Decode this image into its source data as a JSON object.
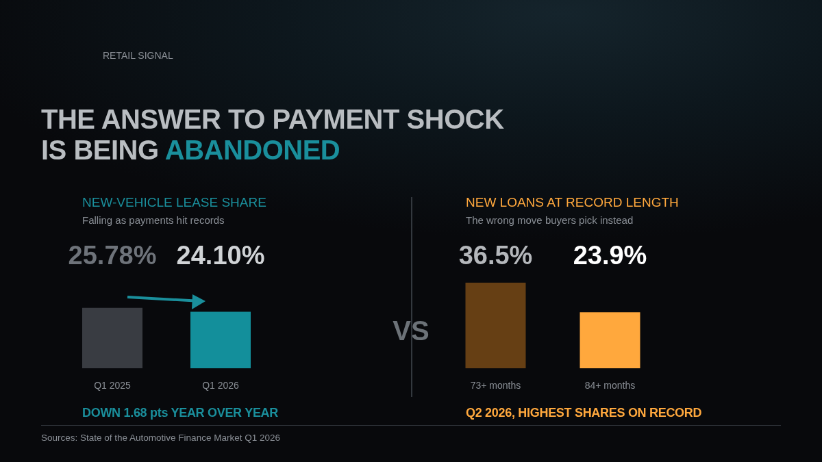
{
  "chart_data": [
    {
      "type": "other",
      "title": "THE ANSWER TO PAYMENT SHOCK IS BEING ABANDONED",
      "subtitle": "RETAIL SIGNAL",
      "annotations": [
        "VS",
        "Sources: State of the Automotive Finance Market Q1 2026"
      ]
    },
    {
      "type": "bar",
      "title": "NEW-VEHICLE LEASE SHARE",
      "subtitle": "Falling as payments hit records",
      "categories": [
        "Q1 2025",
        "Q1 2026"
      ],
      "values": [
        25.78,
        24.1
      ],
      "value_labels": [
        "25.78%",
        "24.10%"
      ],
      "colors": [
        "#393c42",
        "#138f9b"
      ],
      "annotations": [
        "DOWN 1.68 pts YEAR OVER YEAR"
      ]
    },
    {
      "type": "bar",
      "title": "NEW LOANS AT RECORD LENGTH",
      "subtitle": "The wrong move buyers pick instead",
      "categories": [
        "73+ months",
        "84+ months"
      ],
      "values": [
        36.5,
        23.9
      ],
      "value_labels": [
        "36.5%",
        "23.9%"
      ],
      "colors": [
        "#663f14",
        "#ffa83d"
      ],
      "annotations": [
        "Q2 2026, HIGHEST SHARES ON RECORD"
      ]
    }
  ]
}
